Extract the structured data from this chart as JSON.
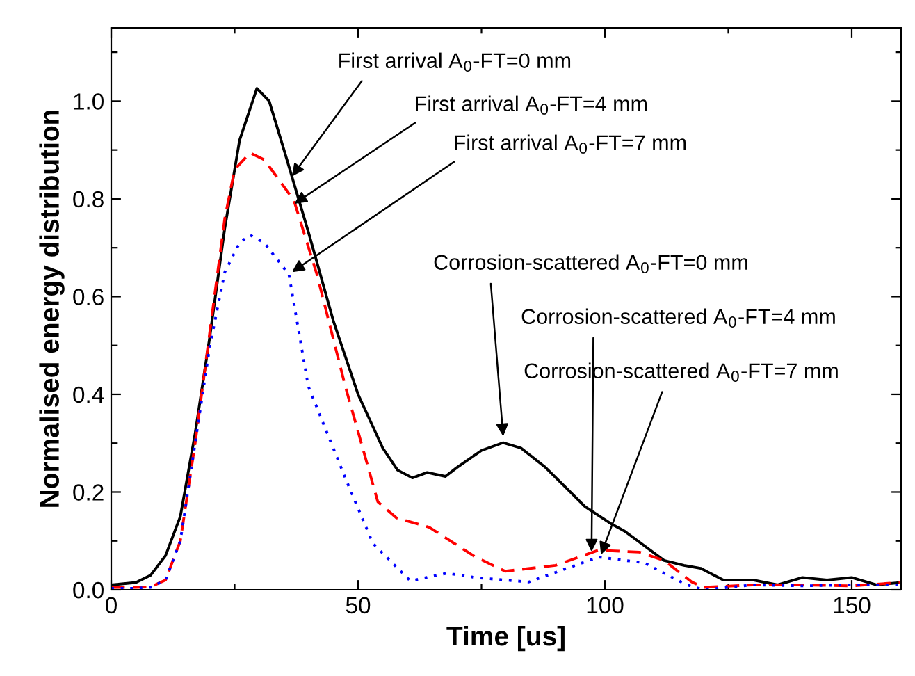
{
  "chart_data": {
    "type": "line",
    "xlabel": "Time [us]",
    "ylabel": "Normalised energy distribution",
    "xlim": [
      0,
      160
    ],
    "ylim": [
      0,
      1.15
    ],
    "xticks": [
      0,
      {
        "value": 25,
        "label": null
      },
      50,
      {
        "value": 75,
        "label": null
      },
      100,
      {
        "value": 125,
        "label": null
      },
      150
    ],
    "yticks": [
      "0.0",
      {
        "value": 0.1,
        "label": null
      },
      {
        "value": 0.2,
        "label": "0.2"
      },
      {
        "value": 0.3,
        "label": null
      },
      {
        "value": 0.4,
        "label": "0.4"
      },
      {
        "value": 0.5,
        "label": null
      },
      {
        "value": 0.6,
        "label": "0.6"
      },
      {
        "value": 0.7,
        "label": null
      },
      {
        "value": 0.8,
        "label": "0.8"
      },
      {
        "value": 0.9,
        "label": null
      },
      {
        "value": 1.0,
        "label": "1.0"
      },
      {
        "value": 1.1,
        "label": null
      }
    ],
    "grid": false,
    "legend": false,
    "marker": "none",
    "series": [
      {
        "color": "#000000",
        "line_style": "solid",
        "x": [
          0,
          5,
          8,
          11,
          14,
          17,
          20,
          23,
          26,
          29.5,
          32,
          35,
          40,
          45,
          50,
          55,
          58,
          61,
          64,
          67.7,
          70,
          75,
          79.4,
          83,
          88,
          92,
          96,
          101.6,
          104,
          108,
          112,
          116,
          119.4,
          124,
          130,
          135,
          140,
          145,
          150,
          155,
          160
        ],
        "values": [
          0.01,
          0.015,
          0.03,
          0.07,
          0.15,
          0.32,
          0.52,
          0.74,
          0.92,
          1.026,
          1.0,
          0.9,
          0.73,
          0.55,
          0.4,
          0.29,
          0.245,
          0.229,
          0.24,
          0.232,
          0.25,
          0.285,
          0.301,
          0.29,
          0.25,
          0.21,
          0.17,
          0.133,
          0.12,
          0.09,
          0.06,
          0.05,
          0.044,
          0.02,
          0.02,
          0.01,
          0.025,
          0.02,
          0.025,
          0.01,
          0.015
        ]
      },
      {
        "color": "#ff0000",
        "line_style": "dashed",
        "x": [
          0,
          5,
          8,
          11,
          14,
          17,
          20,
          23,
          25,
          28.1,
          31,
          37,
          41.7,
          47.4,
          54,
          57.8,
          64.4,
          73.8,
          79.8,
          90,
          98.7,
          107,
          112,
          117.6,
          120,
          130,
          140,
          150,
          160
        ],
        "values": [
          0.005,
          0.005,
          0.006,
          0.02,
          0.1,
          0.3,
          0.53,
          0.76,
          0.86,
          0.894,
          0.88,
          0.797,
          0.644,
          0.417,
          0.18,
          0.147,
          0.128,
          0.067,
          0.038,
          0.05,
          0.081,
          0.077,
          0.06,
          0.016,
          0.005,
          0.01,
          0.01,
          0.008,
          0.015
        ]
      },
      {
        "color": "#0000ff",
        "line_style": "dotted",
        "x": [
          0,
          5,
          8,
          11,
          14,
          17,
          20,
          23,
          26,
          28.1,
          31,
          36,
          39.9,
          47.4,
          53,
          60.6,
          68,
          73.8,
          84.6,
          98.7,
          108,
          116.6,
          120,
          130,
          140,
          150,
          160
        ],
        "values": [
          0.003,
          0.003,
          0.005,
          0.02,
          0.1,
          0.3,
          0.5,
          0.65,
          0.71,
          0.726,
          0.71,
          0.645,
          0.417,
          0.229,
          0.095,
          0.018,
          0.034,
          0.025,
          0.016,
          0.067,
          0.055,
          0.01,
          0.0,
          0.01,
          0.008,
          0.01,
          0.01
        ]
      }
    ],
    "annotations": [
      {
        "text": "First arrival A$_{0}$-FT=0 mm",
        "x": 36.6,
        "y": 0.846
      },
      {
        "text": "First arrival A$_{0}$-FT=4 mm",
        "x": 37.1,
        "y": 0.79
      },
      {
        "text": "First arrival A$_{0}$-FT=7 mm",
        "x": 36.6,
        "y": 0.65
      },
      {
        "text": "Corrosion-scattered A$_{0}$-FT=0 mm",
        "x": 79.4,
        "y": 0.314
      },
      {
        "text": "Corrosion-scattered A$_{0}$-FT=4 mm",
        "x": 97.3,
        "y": 0.078
      },
      {
        "text": "Corrosion-scattered A$_{0}$-FT=7 mm",
        "x": 99.2,
        "y": 0.072
      }
    ]
  }
}
